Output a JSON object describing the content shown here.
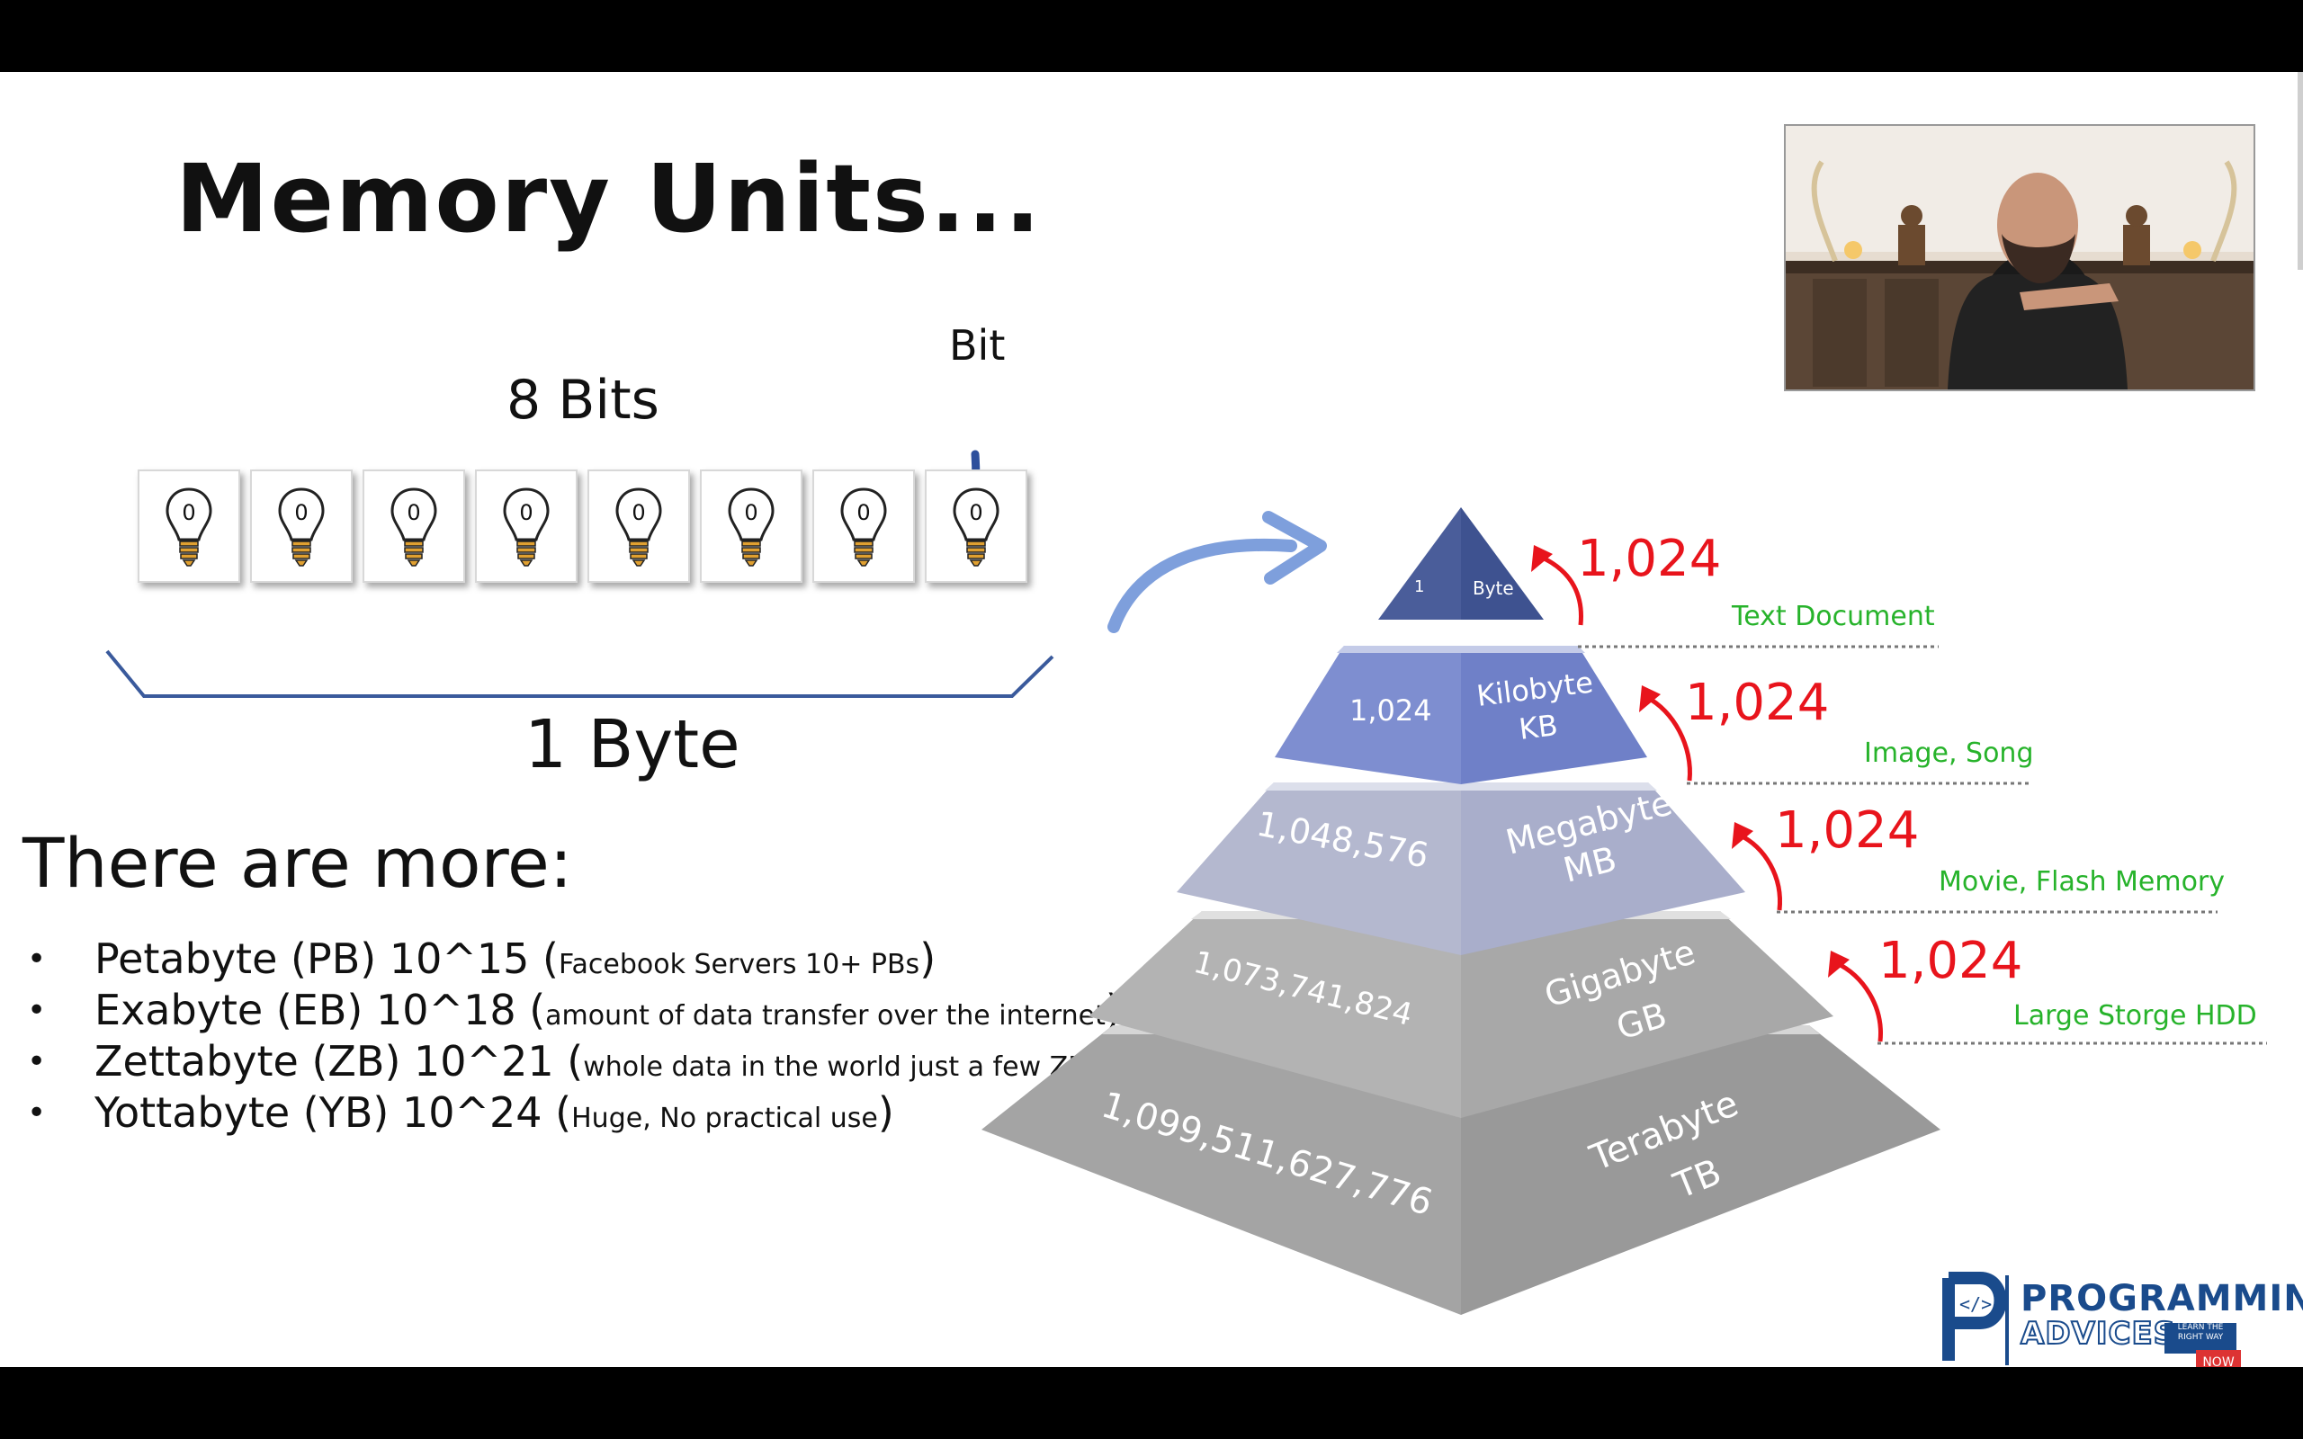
{
  "slide": {
    "title": "Memory Units...",
    "bits_label": "8 Bits",
    "bit_label": "Bit",
    "bulbs": [
      "0",
      "0",
      "0",
      "0",
      "0",
      "0",
      "0",
      "0"
    ],
    "byte_label": "1 Byte",
    "more_title": "There are more:",
    "more_items": [
      {
        "bullet": "•",
        "main": "Petabyte (PB) 10^15 (",
        "note": "Facebook Servers 10+ PBs",
        "close": ")"
      },
      {
        "bullet": "•",
        "main": "Exabyte (EB) 10^18 (",
        "note": "amount of data transfer over the internet",
        "close": ")"
      },
      {
        "bullet": "•",
        "main": "Zettabyte (ZB) 10^21 (",
        "note": "whole data in the world just a few ZB",
        "close": ")"
      },
      {
        "bullet": "•",
        "main": "Yottabyte (YB) 10^24 (",
        "note": "Huge, No practical use",
        "close": ")"
      }
    ]
  },
  "pyramid": {
    "levels": [
      {
        "value": "1",
        "unit": "Byte",
        "abbr": ""
      },
      {
        "value": "1,024",
        "unit": "Kilobyte",
        "abbr": "KB"
      },
      {
        "value": "1,048,576",
        "unit": "Megabyte",
        "abbr": "MB"
      },
      {
        "value": "1,073,741,824",
        "unit": "Gigabyte",
        "abbr": "GB"
      },
      {
        "value": "1,099,511,627,776",
        "unit": "Terabyte",
        "abbr": "TB"
      }
    ],
    "multipliers": [
      "1,024",
      "1,024",
      "1,024",
      "1,024"
    ],
    "examples": [
      "Text Document",
      "Image, Song",
      "Movie, Flash Memory",
      "Large Storge HDD"
    ],
    "colors": {
      "multiplier": "#e8141c",
      "example": "#27b32b"
    }
  },
  "logo": {
    "line1": "PROGRAMMING",
    "line2": "ADVICES",
    "tag": "LEARN THE RIGHT WAY",
    "badge": "NOW"
  }
}
